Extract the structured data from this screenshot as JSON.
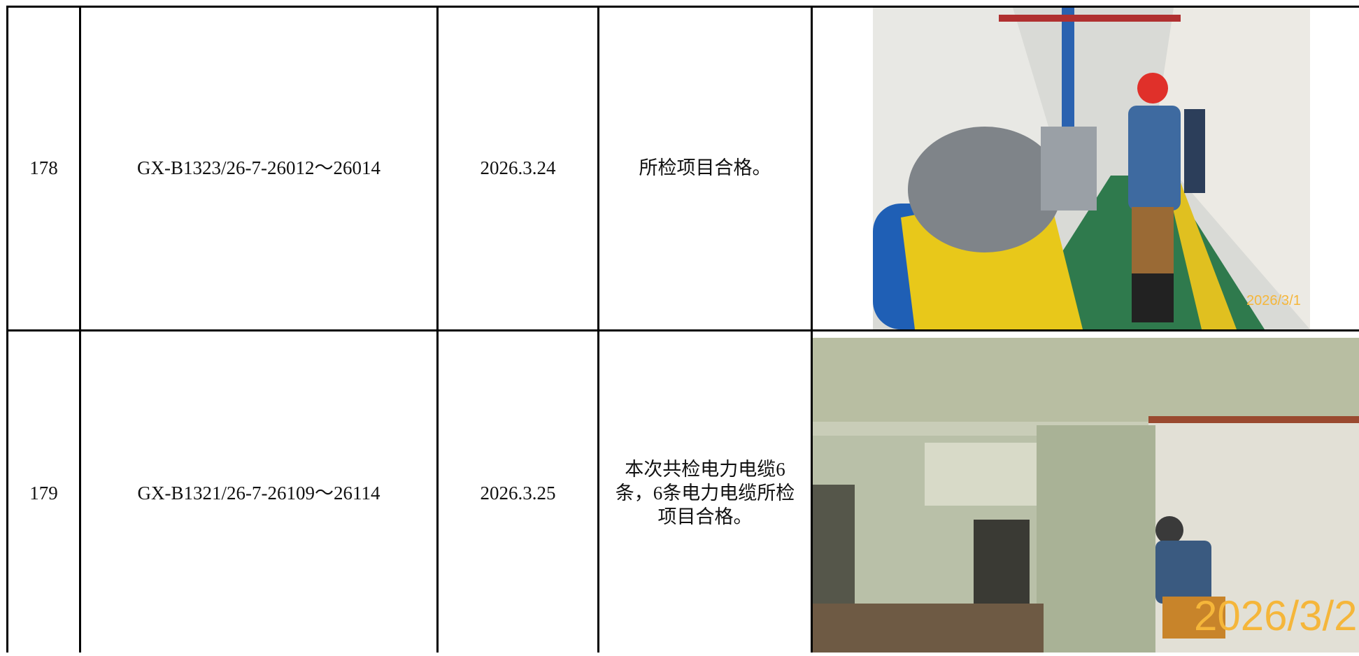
{
  "table": {
    "rows": [
      [
        "178",
        "GX-B1323/26-7-26012～26014",
        "2026.3.24",
        "所检项目合格。"
      ],
      [
        "179",
        "GX-B1321/26-7-26109～26114",
        "2026.3.25",
        "本次共检电力电缆6条，6条电力电缆所检项目合格。"
      ]
    ]
  },
  "photos": [
    {
      "stamp": "2026/3/1"
    },
    {
      "stamp": "2026/3/2"
    }
  ]
}
